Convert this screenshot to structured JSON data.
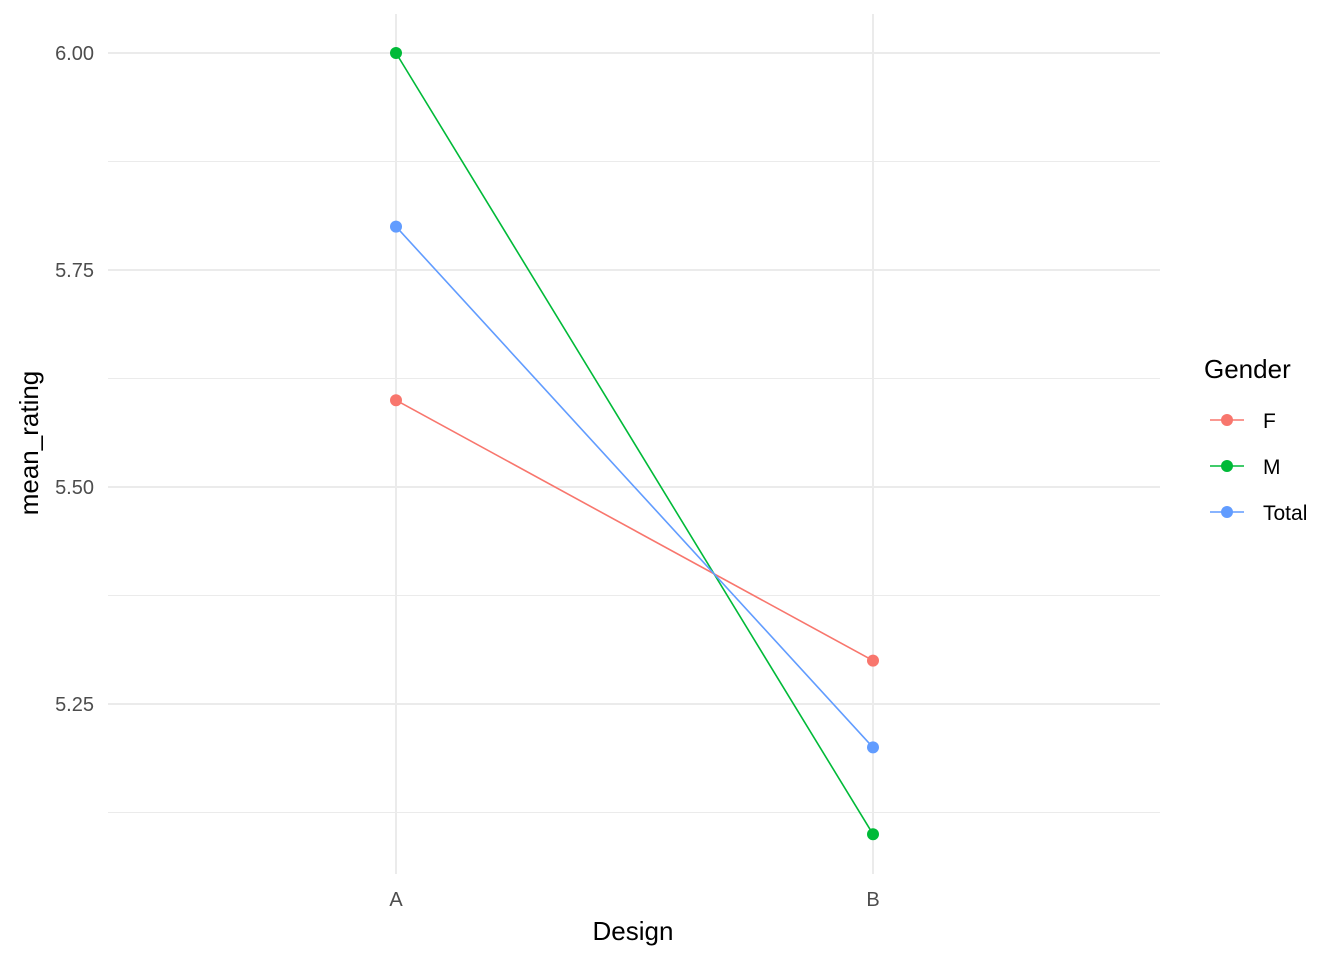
{
  "chart_data": {
    "type": "line",
    "xlabel": "Design",
    "ylabel": "mean_rating",
    "categories": [
      "A",
      "B"
    ],
    "ylim": [
      5.1,
      6.0
    ],
    "y_ticks": [
      5.25,
      5.5,
      5.75,
      6.0
    ],
    "y_tick_labels": [
      "5.25",
      "5.50",
      "5.75",
      "6.00"
    ],
    "grid": true,
    "legend": {
      "title": "Gender",
      "position": "right"
    },
    "series": [
      {
        "name": "F",
        "color": "#F8766D",
        "values": [
          5.6,
          5.3
        ]
      },
      {
        "name": "M",
        "color": "#00BA38",
        "values": [
          6.0,
          5.1
        ]
      },
      {
        "name": "Total",
        "color": "#619CFF",
        "values": [
          5.8,
          5.2
        ]
      }
    ]
  }
}
